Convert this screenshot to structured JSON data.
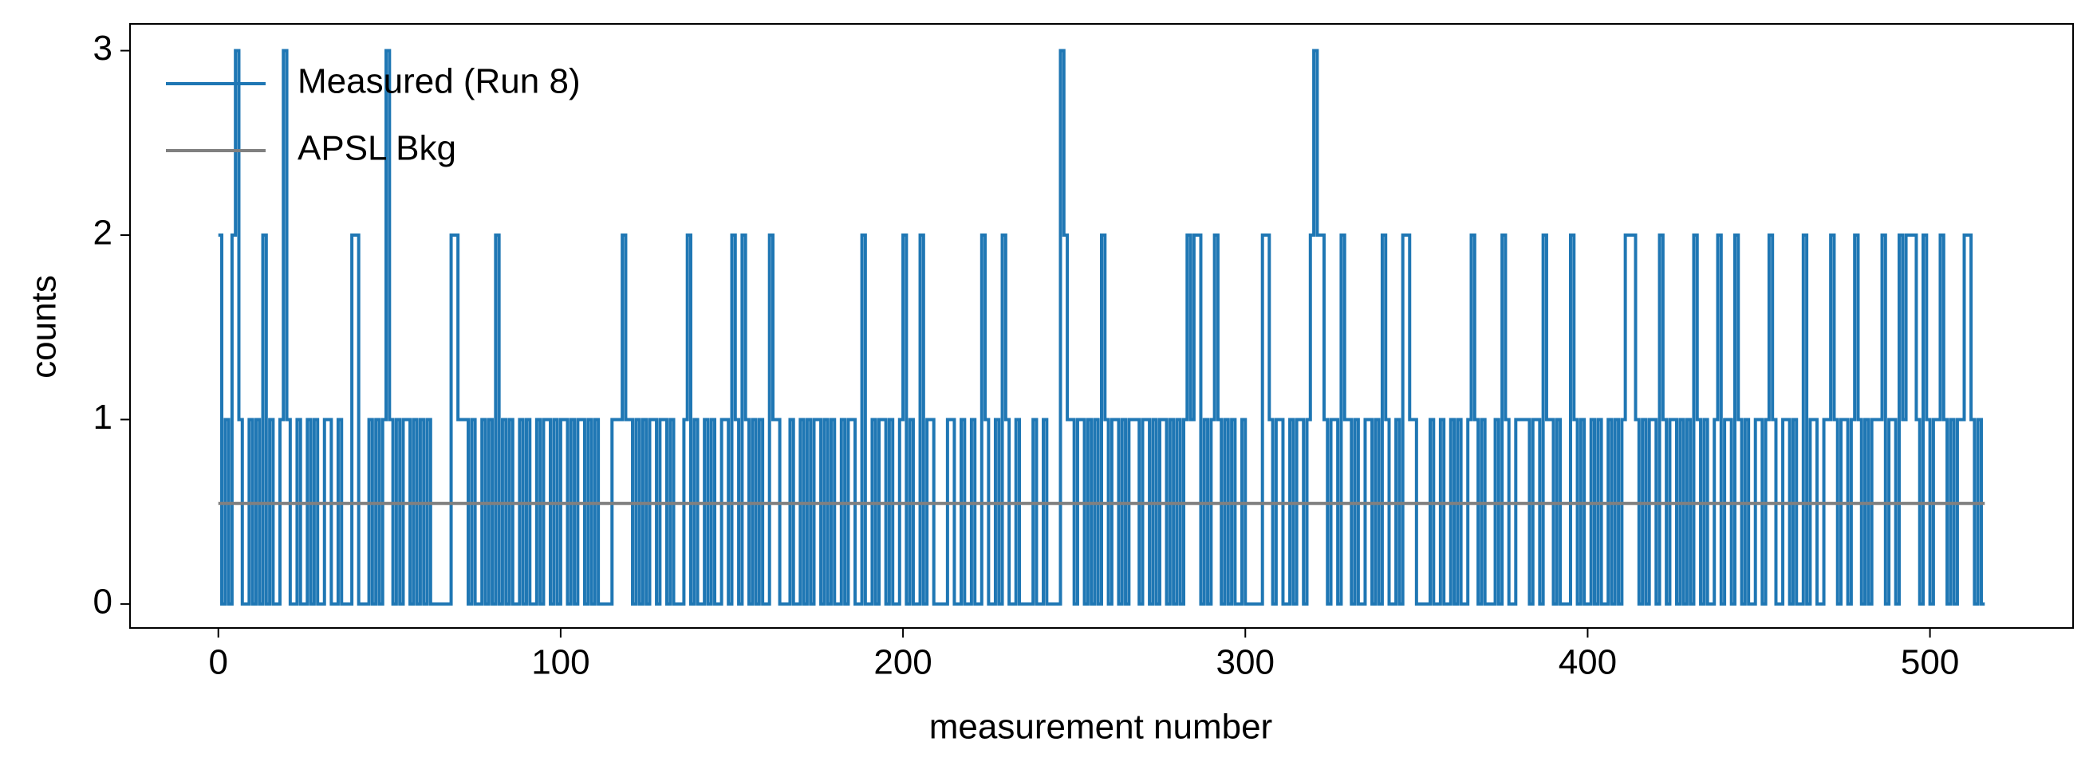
{
  "chart_data": {
    "type": "step",
    "xlabel": "measurement number",
    "ylabel": "counts",
    "xlim": [
      -25.8,
      541.8
    ],
    "xticks": [
      0,
      100,
      200,
      300,
      400,
      500
    ],
    "ylim": [
      -0.13,
      3.145
    ],
    "yticks": [
      0,
      1,
      2,
      3
    ],
    "legend": "upper left",
    "series": [
      {
        "name": "Measured (Run 8)",
        "color": "#1f77b4",
        "x": [
          0,
          1,
          2,
          3,
          4,
          5,
          6,
          7,
          8,
          9,
          10,
          11,
          12,
          13,
          14,
          15,
          16,
          17,
          18,
          19,
          20,
          21,
          22,
          23,
          24,
          25,
          26,
          27,
          28,
          29,
          30,
          31,
          32,
          33,
          34,
          35,
          36,
          37,
          38,
          39,
          40,
          41,
          42,
          43,
          44,
          45,
          46,
          47,
          48,
          49,
          50,
          51,
          52,
          53,
          54,
          55,
          56,
          57,
          58,
          59,
          60,
          61,
          62,
          63,
          64,
          65,
          66,
          67,
          68,
          69,
          70,
          71,
          72,
          73,
          74,
          75,
          76,
          77,
          78,
          79,
          80,
          81,
          82,
          83,
          84,
          85,
          86,
          87,
          88,
          89,
          90,
          91,
          92,
          93,
          94,
          95,
          96,
          97,
          98,
          99,
          100,
          101,
          102,
          103,
          104,
          105,
          106,
          107,
          108,
          109,
          110,
          111,
          112,
          113,
          114,
          115,
          116,
          117,
          118,
          119,
          120,
          121,
          122,
          123,
          124,
          125,
          126,
          127,
          128,
          129,
          130,
          131,
          132,
          133,
          134,
          135,
          136,
          137,
          138,
          139,
          140,
          141,
          142,
          143,
          144,
          145,
          146,
          147,
          148,
          149,
          150,
          151,
          152,
          153,
          154,
          155,
          156,
          157,
          158,
          159,
          160,
          161,
          162,
          163,
          164,
          165,
          166,
          167,
          168,
          169,
          170,
          171,
          172,
          173,
          174,
          175,
          176,
          177,
          178,
          179,
          180,
          181,
          182,
          183,
          184,
          185,
          186,
          187,
          188,
          189,
          190,
          191,
          192,
          193,
          194,
          195,
          196,
          197,
          198,
          199,
          200,
          201,
          202,
          203,
          204,
          205,
          206,
          207,
          208,
          209,
          210,
          211,
          212,
          213,
          214,
          215,
          216,
          217,
          218,
          219,
          220,
          221,
          222,
          223,
          224,
          225,
          226,
          227,
          228,
          229,
          230,
          231,
          232,
          233,
          234,
          235,
          236,
          237,
          238,
          239,
          240,
          241,
          242,
          243,
          244,
          245,
          246,
          247,
          248,
          249,
          250,
          251,
          252,
          253,
          254,
          255,
          256,
          257,
          258,
          259,
          260,
          261,
          262,
          263,
          264,
          265,
          266,
          267,
          268,
          269,
          270,
          271,
          272,
          273,
          274,
          275,
          276,
          277,
          278,
          279,
          280,
          281,
          282,
          283,
          284,
          285,
          286,
          287,
          288,
          289,
          290,
          291,
          292,
          293,
          294,
          295,
          296,
          297,
          298,
          299,
          300,
          301,
          302,
          303,
          304,
          305,
          306,
          307,
          308,
          309,
          310,
          311,
          312,
          313,
          314,
          315,
          316,
          317,
          318,
          319,
          320,
          321,
          322,
          323,
          324,
          325,
          326,
          327,
          328,
          329,
          330,
          331,
          332,
          333,
          334,
          335,
          336,
          337,
          338,
          339,
          340,
          341,
          342,
          343,
          344,
          345,
          346,
          347,
          348,
          349,
          350,
          351,
          352,
          353,
          354,
          355,
          356,
          357,
          358,
          359,
          360,
          361,
          362,
          363,
          364,
          365,
          366,
          367,
          368,
          369,
          370,
          371,
          372,
          373,
          374,
          375,
          376,
          377,
          378,
          379,
          380,
          381,
          382,
          383,
          384,
          385,
          386,
          387,
          388,
          389,
          390,
          391,
          392,
          393,
          394,
          395,
          396,
          397,
          398,
          399,
          400,
          401,
          402,
          403,
          404,
          405,
          406,
          407,
          408,
          409,
          410,
          411,
          412,
          413,
          414,
          415,
          416,
          417,
          418,
          419,
          420,
          421,
          422,
          423,
          424,
          425,
          426,
          427,
          428,
          429,
          430,
          431,
          432,
          433,
          434,
          435,
          436,
          437,
          438,
          439,
          440,
          441,
          442,
          443,
          444,
          445,
          446,
          447,
          448,
          449,
          450,
          451,
          452,
          453,
          454,
          455,
          456,
          457,
          458,
          459,
          460,
          461,
          462,
          463,
          464,
          465,
          466,
          467,
          468,
          469,
          470,
          471,
          472,
          473,
          474,
          475,
          476,
          477,
          478,
          479,
          480,
          481,
          482,
          483,
          484,
          485,
          486,
          487,
          488,
          489,
          490,
          491,
          492,
          493,
          494,
          495,
          496,
          497,
          498,
          499,
          500,
          501,
          502,
          503,
          504,
          505,
          506,
          507,
          508,
          509,
          510,
          511,
          512,
          513,
          514,
          515,
          516
        ],
        "values": [
          2,
          0,
          1,
          0,
          2,
          3,
          1,
          0,
          0,
          1,
          0,
          1,
          0,
          2,
          0,
          1,
          0,
          0,
          1,
          3,
          1,
          0,
          0,
          1,
          0,
          0,
          1,
          0,
          1,
          0,
          0,
          1,
          1,
          0,
          0,
          1,
          0,
          0,
          0,
          2,
          2,
          0,
          0,
          0,
          1,
          0,
          1,
          0,
          1,
          3,
          1,
          0,
          1,
          0,
          1,
          1,
          0,
          1,
          0,
          1,
          0,
          1,
          0,
          0,
          0,
          0,
          0,
          0,
          2,
          2,
          1,
          1,
          1,
          0,
          1,
          0,
          0,
          1,
          0,
          1,
          0,
          2,
          0,
          1,
          0,
          1,
          0,
          0,
          1,
          0,
          1,
          0,
          0,
          1,
          0,
          1,
          1,
          0,
          1,
          0,
          1,
          1,
          0,
          1,
          0,
          1,
          1,
          0,
          1,
          0,
          1,
          0,
          0,
          0,
          0,
          1,
          1,
          1,
          2,
          1,
          1,
          0,
          1,
          0,
          1,
          0,
          1,
          1,
          0,
          1,
          1,
          0,
          1,
          0,
          0,
          0,
          1,
          2,
          0,
          1,
          0,
          0,
          1,
          0,
          1,
          0,
          0,
          1,
          1,
          0,
          2,
          1,
          0,
          2,
          1,
          0,
          1,
          0,
          1,
          0,
          0,
          2,
          1,
          1,
          0,
          0,
          0,
          1,
          0,
          0,
          1,
          0,
          1,
          0,
          1,
          1,
          0,
          1,
          0,
          1,
          0,
          0,
          1,
          0,
          1,
          1,
          0,
          0,
          2,
          0,
          0,
          1,
          0,
          1,
          1,
          0,
          1,
          0,
          0,
          1,
          2,
          0,
          1,
          0,
          0,
          2,
          0,
          1,
          1,
          0,
          0,
          0,
          0,
          1,
          1,
          0,
          0,
          1,
          0,
          0,
          1,
          0,
          0,
          2,
          1,
          0,
          0,
          1,
          0,
          2,
          1,
          0,
          0,
          1,
          0,
          0,
          0,
          0,
          1,
          0,
          0,
          1,
          0,
          0,
          0,
          0,
          3,
          2,
          1,
          1,
          0,
          1,
          1,
          0,
          1,
          0,
          1,
          0,
          2,
          1,
          0,
          1,
          1,
          0,
          1,
          0,
          1,
          1,
          1,
          0,
          1,
          1,
          0,
          1,
          0,
          1,
          1,
          0,
          1,
          0,
          1,
          0,
          1,
          2,
          1,
          2,
          2,
          0,
          1,
          0,
          1,
          2,
          1,
          0,
          1,
          0,
          1,
          0,
          0,
          1,
          0,
          0,
          0,
          0,
          0,
          2,
          2,
          1,
          0,
          1,
          1,
          0,
          0,
          1,
          0,
          1,
          1,
          0,
          1,
          2,
          3,
          2,
          2,
          1,
          0,
          1,
          1,
          0,
          2,
          1,
          1,
          0,
          1,
          0,
          0,
          1,
          1,
          0,
          1,
          0,
          2,
          1,
          0,
          0,
          1,
          0,
          2,
          2,
          1,
          1,
          0,
          0,
          0,
          0,
          1,
          0,
          0,
          1,
          0,
          0,
          1,
          0,
          1,
          0,
          0,
          1,
          2,
          1,
          0,
          1,
          0,
          0,
          0,
          1,
          0,
          2,
          1,
          0,
          0,
          1,
          1,
          1,
          1,
          0,
          1,
          1,
          0,
          2,
          1,
          1,
          0,
          1,
          0,
          0,
          0,
          2,
          1,
          0,
          1,
          0,
          0,
          1,
          0,
          1,
          0,
          0,
          1,
          0,
          1,
          0,
          1,
          2,
          2,
          2,
          1,
          0,
          1,
          0,
          1,
          1,
          0,
          2,
          1,
          0,
          1,
          1,
          0,
          1,
          0,
          1,
          0,
          2,
          1,
          0,
          1,
          0,
          0,
          1,
          2,
          0,
          1,
          1,
          0,
          2,
          1,
          0,
          1,
          0,
          0,
          1,
          1,
          0,
          1,
          2,
          1,
          0,
          0,
          1,
          1,
          0,
          1,
          0,
          0,
          2,
          0,
          1,
          1,
          0,
          0,
          1,
          1,
          2,
          1,
          0,
          1,
          1,
          0,
          1,
          2,
          1,
          0,
          1,
          0,
          1,
          1,
          1,
          2,
          0,
          1,
          1,
          0,
          2,
          1,
          2,
          2,
          2,
          1,
          0,
          2,
          1,
          0,
          1,
          1,
          2,
          1,
          0,
          1,
          0,
          1,
          1,
          2,
          2,
          1,
          0,
          1,
          0,
          0
        ]
      },
      {
        "name": "APSL Bkg",
        "color": "#808080",
        "x": [
          0,
          516
        ],
        "values": [
          0.545,
          0.545
        ]
      }
    ]
  }
}
